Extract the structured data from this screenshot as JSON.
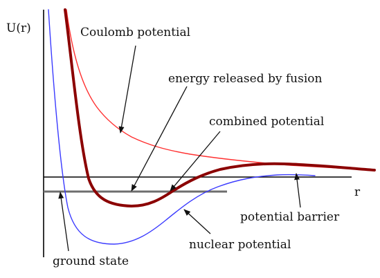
{
  "labels": {
    "y_axis": "U(r)",
    "x_axis": "r",
    "coulomb": "Coulomb potential",
    "fusion": "energy released by fusion",
    "combined": "combined potential",
    "barrier": "potential barrier",
    "nuclear": "nuclear potential",
    "ground": "ground state"
  },
  "colors": {
    "coulomb": "#ff3030",
    "combined": "#8b0000",
    "nuclear": "#3a3aff",
    "ground_level": "#6e6e6e",
    "axes": "#000000"
  }
}
